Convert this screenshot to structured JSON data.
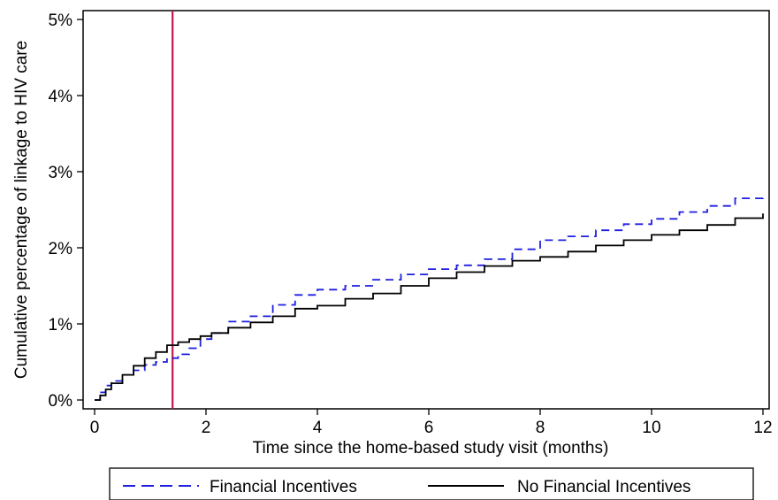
{
  "chart_data": {
    "type": "line",
    "title": "",
    "xlabel": "Time since the home-based study visit (months)",
    "ylabel": "Cumulative percentage of linkage to HIV care",
    "xlim": [
      0,
      12
    ],
    "ylim": [
      0,
      5
    ],
    "x_ticks": [
      0,
      2,
      4,
      6,
      8,
      10,
      12
    ],
    "x_tick_labels": [
      "0",
      "2",
      "4",
      "6",
      "8",
      "10",
      "12"
    ],
    "y_ticks": [
      0,
      1,
      2,
      3,
      4,
      5
    ],
    "y_tick_labels": [
      "0%",
      "1%",
      "2%",
      "3%",
      "4%",
      "5%"
    ],
    "grid": false,
    "legend_position": "bottom",
    "reference_line": {
      "x": 1.4,
      "color": "#c0184c"
    },
    "series": [
      {
        "name": "Financial Incentives",
        "color": "#1f1fe0",
        "style": "dashed",
        "x": [
          0,
          0.1,
          0.2,
          0.3,
          0.5,
          0.7,
          0.9,
          1.1,
          1.3,
          1.5,
          1.7,
          1.9,
          2.1,
          2.4,
          2.8,
          3.2,
          3.6,
          4.0,
          4.5,
          5.0,
          5.5,
          6.0,
          6.5,
          7.0,
          7.5,
          8.0,
          8.5,
          9.0,
          9.5,
          10.0,
          10.5,
          11.0,
          11.5,
          12.0
        ],
        "y": [
          0,
          0.1,
          0.19,
          0.25,
          0.33,
          0.39,
          0.46,
          0.5,
          0.55,
          0.6,
          0.68,
          0.8,
          0.88,
          1.03,
          1.1,
          1.25,
          1.38,
          1.45,
          1.5,
          1.58,
          1.65,
          1.72,
          1.77,
          1.85,
          1.98,
          2.1,
          2.15,
          2.23,
          2.31,
          2.38,
          2.47,
          2.55,
          2.65,
          2.7
        ]
      },
      {
        "name": "No Financial Incentives",
        "color": "#000000",
        "style": "solid",
        "x": [
          0,
          0.1,
          0.2,
          0.3,
          0.5,
          0.7,
          0.9,
          1.1,
          1.3,
          1.5,
          1.7,
          1.9,
          2.1,
          2.4,
          2.8,
          3.2,
          3.6,
          4.0,
          4.5,
          5.0,
          5.5,
          6.0,
          6.5,
          7.0,
          7.5,
          8.0,
          8.5,
          9.0,
          9.5,
          10.0,
          10.5,
          11.0,
          11.5,
          12.0
        ],
        "y": [
          0,
          0.06,
          0.14,
          0.22,
          0.33,
          0.45,
          0.55,
          0.63,
          0.72,
          0.76,
          0.8,
          0.84,
          0.88,
          0.95,
          1.02,
          1.1,
          1.2,
          1.24,
          1.33,
          1.4,
          1.5,
          1.6,
          1.68,
          1.76,
          1.83,
          1.88,
          1.95,
          2.03,
          2.1,
          2.17,
          2.23,
          2.3,
          2.39,
          2.45
        ]
      }
    ]
  }
}
